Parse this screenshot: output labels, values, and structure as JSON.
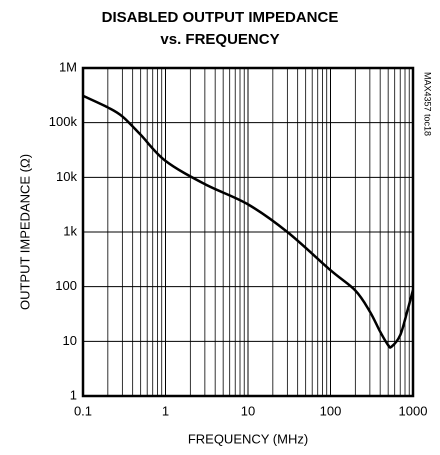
{
  "chart_data": {
    "type": "line",
    "title": "DISABLED OUTPUT IMPEDANCE",
    "subtitle": "vs. FREQUENCY",
    "xlabel": "FREQUENCY (MHz)",
    "ylabel": "OUTPUT IMPEDANCE (Ω)",
    "annotation": "MAX4357 toc18",
    "xlog": true,
    "ylog": true,
    "grid": true,
    "xlim": [
      0.1,
      1000
    ],
    "ylim": [
      1,
      1000000
    ],
    "xticks": [
      0.1,
      1,
      10,
      100,
      1000
    ],
    "xminorticks": [
      0.2,
      0.3,
      0.4,
      0.5,
      0.6,
      0.7,
      0.8,
      0.9,
      2,
      3,
      4,
      5,
      6,
      7,
      8,
      9,
      20,
      30,
      40,
      50,
      60,
      70,
      80,
      90,
      200,
      300,
      400,
      500,
      600,
      700,
      800,
      900
    ],
    "yticks": [
      {
        "value": 1000000,
        "label": "1M"
      },
      {
        "value": 100000,
        "label": "100k"
      },
      {
        "value": 10000,
        "label": "10k"
      },
      {
        "value": 1000,
        "label": "1k"
      },
      100,
      10,
      1
    ],
    "x": [
      0.1,
      0.2,
      0.3,
      0.5,
      1,
      3,
      10,
      30,
      100,
      200,
      300,
      400,
      500,
      550,
      700,
      850,
      1000
    ],
    "series": [
      {
        "color": "#000000",
        "values": [
          310000,
          190000,
          130000,
          60000,
          20000,
          7500,
          3200,
          1000,
          200,
          85,
          35,
          15,
          8.5,
          8,
          13,
          35,
          87
        ]
      }
    ]
  }
}
